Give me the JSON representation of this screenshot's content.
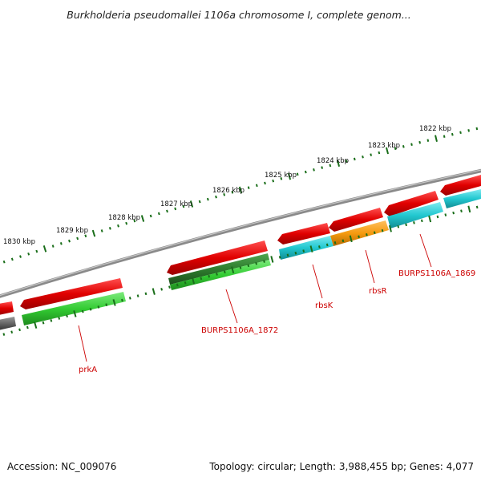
{
  "title": "Burkholderia pseudomallei 1106a chromosome I, complete genom...",
  "accession": "Accession: NC_009076",
  "topology": "Topology: circular; Length: 3,988,455 bp; Genes: 4,077",
  "kbp_labels": [
    "1830 kbp",
    "1829 kbp",
    "1828 kbp",
    "1827 kbp",
    "1826 kbp",
    "1825 kbp",
    "1824 kbp",
    "1823 kbp",
    "1822 kbp"
  ],
  "gene_labels": [
    "prkA",
    "BURPS1106A_1872",
    "rbsK",
    "rbsR",
    "BURPS1106A_1869"
  ],
  "colors": {
    "backbone": "#888888",
    "forward_gene": "#e00000",
    "reverse_gene": "#33cc33",
    "reverse_gene_dark": "#2e7d2e",
    "rbs_cyan": "#22c8d0",
    "rbs_orange": "#f59a10",
    "grey_gene": "#666666",
    "ticks": "#1a6e1a",
    "label": "#cc0000"
  }
}
